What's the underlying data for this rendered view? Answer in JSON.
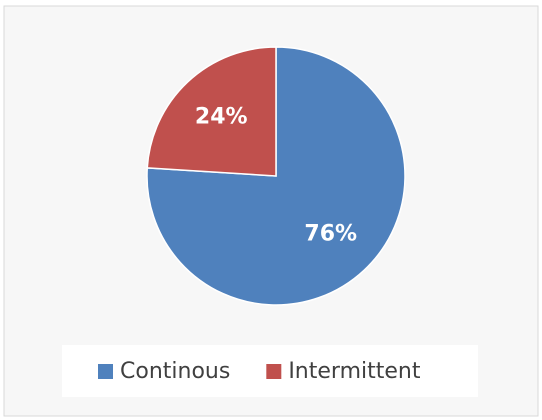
{
  "chart_data": {
    "type": "pie",
    "categories": [
      "Continous",
      "Intermittent"
    ],
    "values": [
      76,
      24
    ],
    "value_labels": [
      "76%",
      "24%"
    ],
    "colors": [
      "#4f81bd",
      "#c0504d"
    ],
    "legend": "bottom"
  }
}
